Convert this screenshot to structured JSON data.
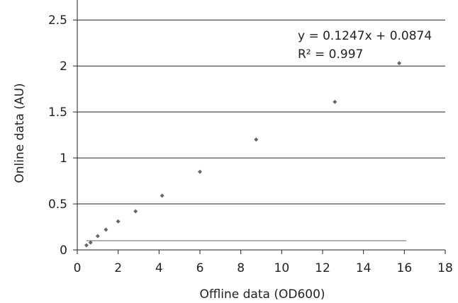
{
  "chart_data": {
    "type": "scatter",
    "xlabel": "Offline data (OD600)",
    "ylabel": "Online data (AU)",
    "xlim": [
      0,
      18
    ],
    "ylim": [
      0,
      2.5
    ],
    "x_ticks": [
      "0",
      "2",
      "4",
      "6",
      "8",
      "10",
      "12",
      "14",
      "16",
      "18"
    ],
    "y_ticks": [
      "0",
      "0.5",
      "1",
      "1.5",
      "2",
      "2.5"
    ],
    "grid": "horizontal",
    "legend": "none",
    "series": [
      {
        "x": [
          0.45,
          0.65,
          1.0,
          1.4,
          2.0,
          2.85,
          4.15,
          6.0,
          8.75,
          12.6,
          15.75
        ],
        "y": [
          0.05,
          0.08,
          0.15,
          0.22,
          0.31,
          0.42,
          0.59,
          0.85,
          1.2,
          1.61,
          2.03
        ],
        "color": "#666666"
      }
    ],
    "trendline": {
      "x_range": [
        0.45,
        16.1
      ],
      "y_value": 0.1,
      "color": "#666666"
    },
    "annotations": [
      "y = 0.1247x + 0.0874",
      "R² = 0.997"
    ]
  }
}
